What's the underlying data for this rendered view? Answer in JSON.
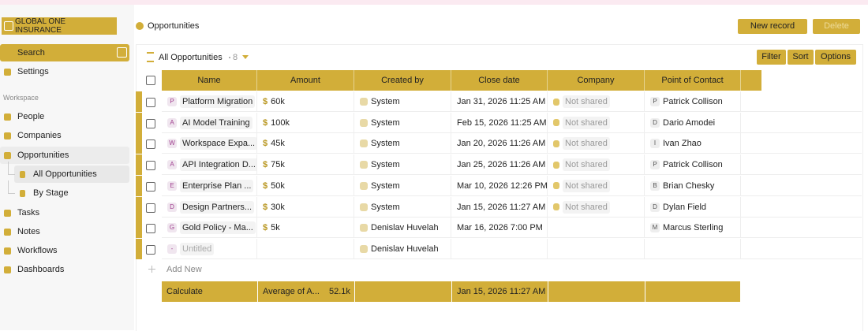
{
  "sidebar": {
    "workspace_name": "GLOBAL ONE INSURANCE",
    "search": "Search",
    "settings": "Settings",
    "section": "Workspace",
    "items": [
      {
        "label": "People"
      },
      {
        "label": "Companies"
      },
      {
        "label": "Opportunities",
        "children": [
          "All Opportunities",
          "By Stage"
        ]
      },
      {
        "label": "Tasks"
      },
      {
        "label": "Notes"
      },
      {
        "label": "Workflows"
      },
      {
        "label": "Dashboards"
      }
    ]
  },
  "header": {
    "breadcrumb": "Opportunities",
    "new_record": "New record",
    "delete": "Delete"
  },
  "view": {
    "name": "All Opportunities",
    "count": 8,
    "filter": "Filter",
    "sort": "Sort",
    "options": "Options"
  },
  "table": {
    "currency_symbol": "$",
    "columns": [
      "Name",
      "Amount",
      "Created by",
      "Close date",
      "Company",
      "Point of Contact"
    ],
    "rows": [
      {
        "name_initial": "P",
        "name": "Platform Migration",
        "amount": "60k",
        "created_by": "System",
        "close_date": "Jan 31, 2026 11:25 AM",
        "company": "Not shared",
        "contact_initial": "P",
        "contact": "Patrick Collison"
      },
      {
        "name_initial": "A",
        "name": "AI Model Training",
        "amount": "100k",
        "created_by": "System",
        "close_date": "Feb 15, 2026 11:25 AM",
        "company": "Not shared",
        "contact_initial": "D",
        "contact": "Dario Amodei"
      },
      {
        "name_initial": "W",
        "name": "Workspace Expa...",
        "amount": "45k",
        "created_by": "System",
        "close_date": "Jan 20, 2026 11:26 AM",
        "company": "Not shared",
        "contact_initial": "I",
        "contact": "Ivan Zhao"
      },
      {
        "name_initial": "A",
        "name": "API Integration D...",
        "amount": "75k",
        "created_by": "System",
        "close_date": "Jan 25, 2026 11:26 AM",
        "company": "Not shared",
        "contact_initial": "P",
        "contact": "Patrick Collison"
      },
      {
        "name_initial": "E",
        "name": "Enterprise Plan ...",
        "amount": "50k",
        "created_by": "System",
        "close_date": "Mar 10, 2026 12:26 PM",
        "company": "Not shared",
        "contact_initial": "B",
        "contact": "Brian Chesky"
      },
      {
        "name_initial": "D",
        "name": "Design Partners...",
        "amount": "30k",
        "created_by": "System",
        "close_date": "Jan 15, 2026 11:27 AM",
        "company": "Not shared",
        "contact_initial": "D",
        "contact": "Dylan Field"
      },
      {
        "name_initial": "G",
        "name": "Gold Policy - Ma...",
        "amount": "5k",
        "created_by": "Denislav Huvelah",
        "close_date": "Mar 16, 2026 7:00 PM",
        "company": null,
        "contact_initial": "M",
        "contact": "Marcus Sterling"
      },
      {
        "name_initial": "-",
        "name": "Untitled",
        "amount": null,
        "created_by": "Denislav Huvelah",
        "close_date": null,
        "company": null,
        "contact_initial": null,
        "contact": null
      }
    ],
    "add_new": "Add New",
    "footer": {
      "calculate": "Calculate",
      "aggregate_label": "Average of A...",
      "aggregate_value": "52.1k",
      "close_date": "Jan 15, 2026 11:27 AM"
    }
  }
}
